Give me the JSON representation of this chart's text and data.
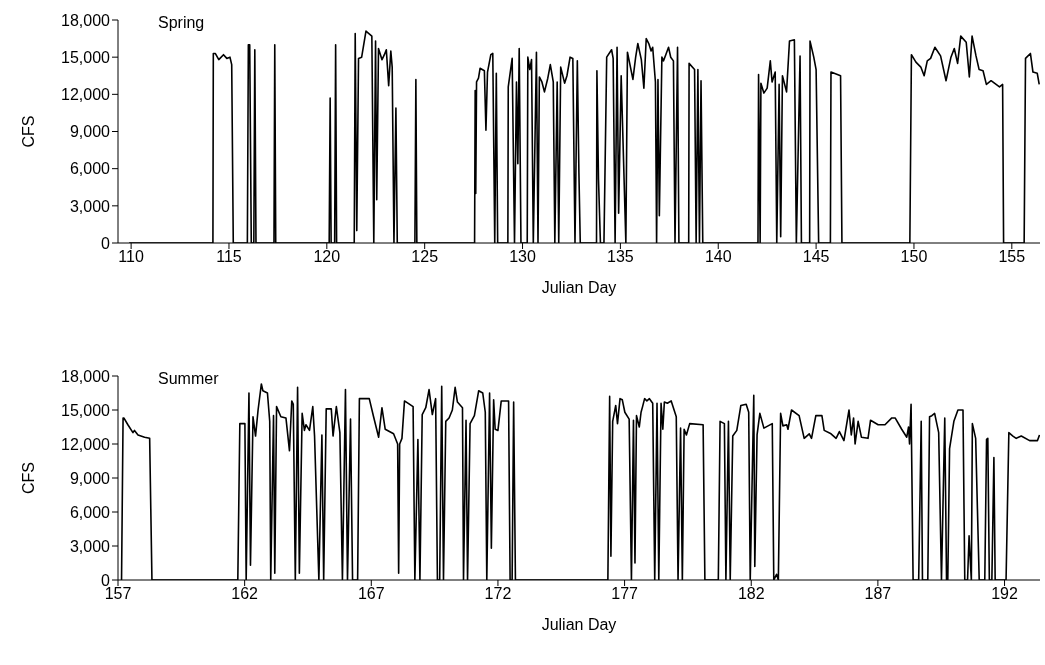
{
  "chart_data": [
    {
      "type": "line",
      "title": "Spring",
      "xlabel": "Julian Day",
      "ylabel": "CFS",
      "xlim": [
        109.33,
        156.44
      ],
      "xticks": [
        110,
        115,
        120,
        125,
        130,
        135,
        140,
        145,
        150,
        155
      ],
      "ylim": [
        0,
        18000
      ],
      "yticks": [
        {
          "value": 0,
          "label": "0"
        },
        {
          "value": 3000,
          "label": "3,000"
        },
        {
          "value": 6000,
          "label": "6,000"
        },
        {
          "value": 9000,
          "label": "9,000"
        },
        {
          "value": 12000,
          "label": "12,000"
        },
        {
          "value": 15000,
          "label": "15,000"
        },
        {
          "value": 18000,
          "label": "18,000"
        }
      ],
      "marker": "none",
      "line_style": "solid",
      "series": [
        {
          "color": "#000000",
          "x": [
            109.9,
            114.18,
            114.2,
            114.3,
            114.48,
            114.72,
            114.89,
            115.05,
            115.14,
            115.22,
            115.94,
            115.99,
            116.06,
            116.14,
            116.27,
            116.32,
            116.38,
            117.3,
            117.34,
            117.39,
            120.12,
            120.17,
            120.22,
            120.4,
            120.45,
            120.5,
            121.4,
            121.45,
            121.53,
            121.62,
            121.78,
            122.0,
            122.3,
            122.4,
            122.49,
            122.55,
            122.64,
            122.82,
            122.94,
            123.04,
            123.16,
            123.27,
            123.34,
            123.43,
            123.53,
            123.6,
            124.5,
            124.55,
            124.6,
            127.55,
            127.58,
            127.61,
            127.65,
            127.75,
            127.83,
            128.05,
            128.13,
            128.21,
            128.38,
            128.48,
            128.58,
            128.66,
            128.73,
            129.25,
            129.27,
            129.47,
            129.59,
            129.69,
            129.76,
            129.83,
            129.92,
            130.24,
            130.27,
            130.37,
            130.46,
            130.55,
            130.71,
            130.79,
            130.86,
            130.99,
            131.12,
            131.29,
            131.42,
            131.57,
            131.65,
            131.77,
            131.85,
            131.95,
            132.15,
            132.27,
            132.43,
            132.57,
            132.68,
            132.8,
            132.88,
            132.95,
            133.78,
            133.8,
            133.88,
            133.98,
            134.16,
            134.3,
            134.55,
            134.63,
            134.73,
            134.83,
            134.91,
            135.04,
            135.28,
            135.36,
            135.64,
            135.78,
            135.89,
            136.07,
            136.2,
            136.32,
            136.45,
            136.57,
            136.65,
            136.79,
            136.85,
            136.92,
            136.99,
            137.12,
            137.2,
            137.32,
            137.46,
            137.57,
            137.71,
            137.79,
            137.92,
            137.99,
            138.49,
            138.51,
            138.79,
            138.87,
            138.96,
            139.04,
            139.12,
            139.21,
            142.03,
            142.06,
            142.14,
            142.18,
            142.33,
            142.5,
            142.66,
            142.75,
            142.91,
            142.99,
            143.11,
            143.19,
            143.28,
            143.49,
            143.64,
            143.89,
            143.99,
            144.18,
            144.25,
            144.67,
            144.69,
            144.88,
            145.0,
            145.13,
            145.73,
            145.76,
            146.25,
            146.32,
            149.79,
            149.87,
            150.1,
            150.35,
            150.52,
            150.68,
            150.85,
            151.07,
            151.36,
            151.64,
            151.89,
            152.06,
            152.23,
            152.39,
            152.67,
            152.83,
            152.97,
            153.17,
            153.33,
            153.53,
            153.7,
            153.94,
            154.37,
            154.53,
            154.58,
            155.63,
            155.7,
            155.95,
            156.08,
            156.3,
            156.4
          ],
          "values": [
            0,
            0,
            15300,
            15300,
            14800,
            15200,
            14900,
            15000,
            14400,
            0,
            0,
            16000,
            16000,
            0,
            0,
            15600,
            0,
            0,
            16000,
            0,
            0,
            11700,
            0,
            0,
            16000,
            0,
            0,
            16900,
            1000,
            14900,
            15000,
            17100,
            16700,
            0,
            16300,
            3500,
            15700,
            14800,
            15200,
            15600,
            12700,
            15500,
            14200,
            0,
            10900,
            0,
            0,
            13200,
            0,
            0,
            12300,
            4000,
            13000,
            13300,
            14100,
            13900,
            9100,
            13800,
            15200,
            15300,
            0,
            13700,
            0,
            0,
            12600,
            14900,
            0,
            13000,
            6400,
            15700,
            0,
            0,
            15000,
            14000,
            14800,
            0,
            15400,
            0,
            13400,
            13000,
            12200,
            13300,
            14400,
            13000,
            0,
            13000,
            0,
            14200,
            12900,
            13500,
            15000,
            14900,
            0,
            14700,
            5700,
            0,
            0,
            13900,
            5200,
            0,
            0,
            15000,
            15600,
            14900,
            0,
            15800,
            2400,
            13500,
            0,
            15400,
            13200,
            15000,
            16100,
            14800,
            12500,
            16500,
            16100,
            15500,
            15800,
            13000,
            0,
            13200,
            2200,
            15000,
            14700,
            15200,
            15800,
            15000,
            14700,
            0,
            15800,
            0,
            0,
            14500,
            14000,
            0,
            14000,
            0,
            13100,
            0,
            0,
            13600,
            0,
            12900,
            12100,
            12500,
            14700,
            13000,
            13800,
            0,
            12800,
            500,
            13500,
            12200,
            16300,
            16400,
            0,
            15100,
            0,
            0,
            16300,
            15000,
            14000,
            0,
            0,
            13800,
            13500,
            0,
            0,
            15200,
            14600,
            14200,
            13500,
            14700,
            14900,
            15800,
            15100,
            13100,
            15000,
            15700,
            14500,
            16700,
            16200,
            13400,
            16700,
            15100,
            14000,
            13900,
            12800,
            13100,
            12600,
            12800,
            0,
            0,
            14900,
            15300,
            13800,
            13700,
            12800
          ]
        }
      ]
    },
    {
      "type": "line",
      "title": "Summer",
      "xlabel": "Julian Day",
      "ylabel": "CFS",
      "xlim": [
        157,
        193.4
      ],
      "xticks": [
        157,
        162,
        167,
        172,
        177,
        182,
        187,
        192
      ],
      "ylim": [
        0,
        18000
      ],
      "yticks": [
        {
          "value": 0,
          "label": "0"
        },
        {
          "value": 3000,
          "label": "3,000"
        },
        {
          "value": 6000,
          "label": "6,000"
        },
        {
          "value": 9000,
          "label": "9,000"
        },
        {
          "value": 12000,
          "label": "12,000"
        },
        {
          "value": 15000,
          "label": "15,000"
        },
        {
          "value": 18000,
          "label": "18,000"
        }
      ],
      "marker": "none",
      "line_style": "solid",
      "series": [
        {
          "color": "#000000",
          "x": [
            157.14,
            157.2,
            157.23,
            157.39,
            157.59,
            157.65,
            157.79,
            158.05,
            158.25,
            158.34,
            161.73,
            161.81,
            162.01,
            162.06,
            162.17,
            162.23,
            162.33,
            162.43,
            162.53,
            162.66,
            162.72,
            162.9,
            162.99,
            163.03,
            163.14,
            163.19,
            163.26,
            163.43,
            163.63,
            163.77,
            163.86,
            163.92,
            164.0,
            164.09,
            164.16,
            164.27,
            164.36,
            164.42,
            164.56,
            164.69,
            164.76,
            164.93,
            165.05,
            165.12,
            165.22,
            165.42,
            165.49,
            165.62,
            165.76,
            165.86,
            165.98,
            166.06,
            166.18,
            166.26,
            166.46,
            166.53,
            166.92,
            167.09,
            167.29,
            167.42,
            167.55,
            167.88,
            168.04,
            168.08,
            168.12,
            168.21,
            168.31,
            168.65,
            168.72,
            168.84,
            168.92,
            169.01,
            169.15,
            169.28,
            169.41,
            169.54,
            169.61,
            169.7,
            169.78,
            169.85,
            169.94,
            170.07,
            170.2,
            170.31,
            170.4,
            170.6,
            170.64,
            170.74,
            170.8,
            170.9,
            171.07,
            171.24,
            171.4,
            171.5,
            171.56,
            171.67,
            171.74,
            171.83,
            171.89,
            172.0,
            172.13,
            172.42,
            172.48,
            172.56,
            172.62,
            172.69,
            176.34,
            176.41,
            176.46,
            176.53,
            176.65,
            176.72,
            176.82,
            176.91,
            177.01,
            177.18,
            177.27,
            177.35,
            177.41,
            177.47,
            177.58,
            177.65,
            177.71,
            177.79,
            177.88,
            177.98,
            178.11,
            178.19,
            178.28,
            178.35,
            178.44,
            178.51,
            178.57,
            178.69,
            178.84,
            179.04,
            179.11,
            179.21,
            179.28,
            179.35,
            179.44,
            179.57,
            180.1,
            180.17,
            180.7,
            180.77,
            180.94,
            181.0,
            181.1,
            181.17,
            181.27,
            181.43,
            181.59,
            181.8,
            181.9,
            181.96,
            182.1,
            182.14,
            182.23,
            182.34,
            182.5,
            182.83,
            182.89,
            183.0,
            183.07,
            183.16,
            183.25,
            183.4,
            183.45,
            183.59,
            183.89,
            184.09,
            184.29,
            184.38,
            184.55,
            184.79,
            184.88,
            185.15,
            185.35,
            185.48,
            185.66,
            185.86,
            185.95,
            186.04,
            186.1,
            186.22,
            186.35,
            186.61,
            186.71,
            187.01,
            187.28,
            187.55,
            187.68,
            187.94,
            188.14,
            188.21,
            188.25,
            188.31,
            188.39,
            188.61,
            188.71,
            188.76,
            188.97,
            189.04,
            189.13,
            189.24,
            189.4,
            189.51,
            189.64,
            189.71,
            189.76,
            189.83,
            190.0,
            190.16,
            190.36,
            190.43,
            190.54,
            190.6,
            190.65,
            190.69,
            190.73,
            190.86,
            191.0,
            191.22,
            191.29,
            191.34,
            191.4,
            191.5,
            191.58,
            191.63,
            192.06,
            192.17,
            192.33,
            192.46,
            192.66,
            192.99,
            193.3,
            193.38
          ],
          "values": [
            0,
            14300,
            14300,
            13700,
            13000,
            13200,
            12800,
            12600,
            12500,
            0,
            0,
            13800,
            13800,
            0,
            16500,
            1300,
            14400,
            12700,
            15000,
            17300,
            16700,
            16500,
            14000,
            0,
            14500,
            600,
            15300,
            14400,
            14300,
            11400,
            15800,
            15500,
            0,
            17000,
            600,
            14700,
            13200,
            13700,
            13200,
            15300,
            12700,
            0,
            12800,
            0,
            15100,
            15100,
            12700,
            15300,
            13000,
            0,
            16800,
            0,
            14200,
            0,
            0,
            16000,
            16000,
            14400,
            12600,
            15200,
            13300,
            12900,
            12000,
            600,
            12000,
            12500,
            15800,
            15300,
            0,
            12400,
            0,
            14600,
            15200,
            16800,
            14600,
            16000,
            0,
            0,
            17100,
            0,
            14000,
            14300,
            15000,
            17000,
            15700,
            15200,
            0,
            14100,
            0,
            13800,
            14500,
            16700,
            16500,
            14800,
            0,
            16500,
            2800,
            15900,
            13300,
            13200,
            15800,
            15800,
            0,
            0,
            15700,
            0,
            0,
            16200,
            2100,
            14000,
            15400,
            13800,
            16000,
            15900,
            14800,
            14200,
            0,
            14100,
            1500,
            14500,
            13500,
            14800,
            15300,
            16000,
            15800,
            16000,
            15600,
            0,
            15600,
            0,
            15600,
            13300,
            15700,
            15600,
            15800,
            14400,
            0,
            13400,
            0,
            13300,
            12800,
            13800,
            13700,
            0,
            0,
            14000,
            13800,
            0,
            14000,
            0,
            12700,
            13200,
            15400,
            15500,
            14800,
            0,
            16300,
            1200,
            12800,
            14700,
            13400,
            13800,
            0,
            500,
            0,
            14700,
            13600,
            13700,
            13300,
            15000,
            14500,
            12500,
            12900,
            12500,
            14500,
            14500,
            13200,
            12900,
            12500,
            13100,
            12300,
            15000,
            12800,
            14300,
            12000,
            14000,
            12600,
            12500,
            14100,
            13700,
            13700,
            14300,
            14300,
            13300,
            12600,
            13500,
            12000,
            15500,
            0,
            0,
            14000,
            0,
            0,
            14400,
            14500,
            14700,
            13000,
            0,
            14300,
            0,
            0,
            11600,
            14000,
            15000,
            15000,
            0,
            0,
            3900,
            1600,
            0,
            13800,
            12500,
            0,
            0,
            12400,
            12500,
            0,
            0,
            10800,
            0,
            0,
            13000,
            12700,
            12500,
            12700,
            12300,
            12300,
            12800
          ]
        }
      ]
    }
  ]
}
